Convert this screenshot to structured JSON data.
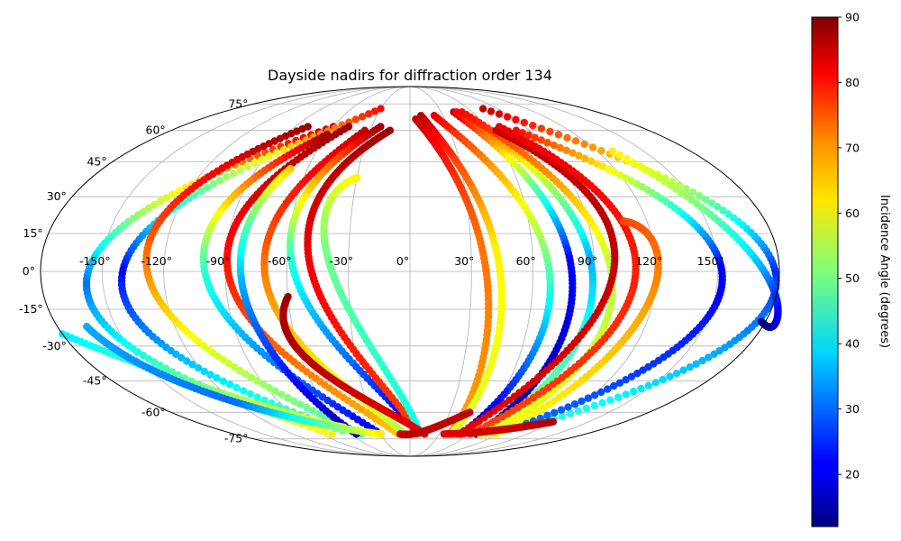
{
  "chart_data": {
    "type": "scatter",
    "title": "Dayside nadirs for diffraction order 134",
    "projection": "mollweide",
    "grid": true,
    "colormap": "jet",
    "lon_ticks": [
      -150,
      -120,
      -90,
      -60,
      -30,
      0,
      30,
      60,
      90,
      120,
      150
    ],
    "lon_tick_labels": [
      "-150°",
      "-120°",
      "-90°",
      "-60°",
      "-30°",
      "0°",
      "30°",
      "60°",
      "90°",
      "120°",
      "150°"
    ],
    "lat_ticks": [
      75,
      60,
      45,
      30,
      15,
      0,
      -15,
      -30,
      -45,
      -60,
      -75
    ],
    "lat_tick_labels": [
      "75°",
      "60°",
      "45°",
      "30°",
      "15°",
      "0°",
      "-15°",
      "-30°",
      "-45°",
      "-60°",
      "-75°"
    ],
    "colorbar": {
      "label": "Incidence Angle (degrees)",
      "range": [
        12,
        90
      ],
      "ticks": [
        20,
        30,
        40,
        50,
        60,
        70,
        80,
        90
      ]
    },
    "tracks": [
      {
        "lon_start": -60,
        "lat_start": 62,
        "lon_apex": -158,
        "lat_apex": -5,
        "lon_end": -80,
        "lat_end": -72,
        "inc_start": 85,
        "inc_apex": 30,
        "inc_end": 62
      },
      {
        "lon_start": -30,
        "lat_start": 72,
        "lon_apex": -140,
        "lat_apex": 0,
        "lon_end": -65,
        "lat_end": -70,
        "inc_start": 80,
        "inc_apex": 22,
        "inc_end": 50
      },
      {
        "lon_start": -80,
        "lat_start": 62,
        "lon_apex": -128,
        "lat_apex": 0,
        "lon_end": -50,
        "lat_end": -72,
        "inc_start": 88,
        "inc_apex": 70,
        "inc_end": 45
      },
      {
        "lon_start": -60,
        "lat_start": 58,
        "lon_apex": -100,
        "lat_apex": 0,
        "lon_end": -30,
        "lat_end": -72,
        "inc_start": 88,
        "inc_apex": 45,
        "inc_end": 20
      },
      {
        "lon_start": -48,
        "lat_start": 62,
        "lon_apex": -88,
        "lat_apex": -3,
        "lon_end": -12,
        "lat_end": -72,
        "inc_start": 88,
        "inc_apex": 78,
        "inc_end": 65
      },
      {
        "lon_start": -70,
        "lat_start": 42,
        "lon_apex": -82,
        "lat_apex": -5,
        "lon_end": -55,
        "lat_end": -72,
        "inc_start": 65,
        "inc_apex": 35,
        "inc_end": 15
      },
      {
        "lon_start": -34,
        "lat_start": 60,
        "lon_apex": -70,
        "lat_apex": -5,
        "lon_end": -5,
        "lat_end": -72,
        "inc_start": 85,
        "inc_apex": 70,
        "inc_end": 55
      },
      {
        "lon_start": -23,
        "lat_start": 62,
        "lon_apex": -58,
        "lat_apex": 5,
        "lon_end": 8,
        "lat_end": -72,
        "inc_start": 88,
        "inc_apex": 45,
        "inc_end": 18
      },
      {
        "lon_start": -15,
        "lat_start": 60,
        "lon_apex": -50,
        "lat_apex": 8,
        "lon_end": 8,
        "lat_end": -72,
        "inc_start": 88,
        "inc_apex": 82,
        "inc_end": 75
      },
      {
        "lon_start": -30,
        "lat_start": 38,
        "lon_apex": -40,
        "lat_apex": 5,
        "lon_end": 10,
        "lat_end": -72,
        "inc_start": 62,
        "inc_apex": 50,
        "inc_end": 42
      },
      {
        "lon_start": -60,
        "lat_start": -10,
        "lon_apex": -52,
        "lat_apex": -40,
        "lon_end": 15,
        "lat_end": -72,
        "inc_start": 88,
        "inc_apex": 85,
        "inc_end": 82
      },
      {
        "lon_start": 5,
        "lat_start": 66,
        "lon_apex": 34,
        "lat_apex": 15,
        "lon_end": 40,
        "lat_end": -72,
        "inc_start": 85,
        "inc_apex": 72,
        "inc_end": 68
      },
      {
        "lon_start": 10,
        "lat_start": 68,
        "lon_apex": 42,
        "lat_apex": 10,
        "lon_end": 42,
        "lat_end": -72,
        "inc_start": 86,
        "inc_apex": 62,
        "inc_end": 58
      },
      {
        "lon_start": 22,
        "lat_start": 68,
        "lon_apex": 67,
        "lat_apex": 5,
        "lon_end": 52,
        "lat_end": -72,
        "inc_start": 82,
        "inc_apex": 50,
        "inc_end": 15
      },
      {
        "lon_start": 42,
        "lat_start": 70,
        "lon_apex": 78,
        "lat_apex": 5,
        "lon_end": 68,
        "lat_end": -72,
        "inc_start": 85,
        "inc_apex": 22,
        "inc_end": 14
      },
      {
        "lon_start": 45,
        "lat_start": 70,
        "lon_apex": 88,
        "lat_apex": 5,
        "lon_end": 72,
        "lat_end": -72,
        "inc_start": 80,
        "inc_apex": 35,
        "inc_end": 55
      },
      {
        "lon_start": 50,
        "lat_start": 70,
        "lon_apex": 98,
        "lat_apex": 0,
        "lon_end": 78,
        "lat_end": -72,
        "inc_start": 80,
        "inc_apex": 55,
        "inc_end": 60
      },
      {
        "lon_start": 65,
        "lat_start": 60,
        "lon_apex": 100,
        "lat_apex": 5,
        "lon_end": 50,
        "lat_end": -72,
        "inc_start": 85,
        "inc_apex": 85,
        "inc_end": 82
      },
      {
        "lon_start": 70,
        "lat_start": 62,
        "lon_apex": 110,
        "lat_apex": 0,
        "lon_end": 62,
        "lat_end": -72,
        "inc_start": 82,
        "inc_apex": 78,
        "inc_end": 75
      },
      {
        "lon_start": 108,
        "lat_start": 20,
        "lon_apex": 120,
        "lat_apex": -5,
        "lon_end": 88,
        "lat_end": -72,
        "inc_start": 75,
        "inc_apex": 70,
        "inc_end": 60
      },
      {
        "lon_start": 75,
        "lat_start": 72,
        "lon_apex": 178,
        "lat_apex": 0,
        "lon_end": 110,
        "lat_end": -66,
        "inc_start": 85,
        "inc_apex": 25,
        "inc_end": 45
      },
      {
        "lon_start": 80,
        "lat_start": 60,
        "lon_apex": 152,
        "lat_apex": 0,
        "lon_end": 100,
        "lat_end": -66,
        "inc_start": 80,
        "inc_apex": 20,
        "inc_end": 30
      },
      {
        "lon_start": 130,
        "lat_start": 50,
        "lon_apex": 180,
        "lat_apex": -10,
        "lon_end": 178,
        "lat_end": -20,
        "inc_start": 62,
        "inc_apex": 25,
        "inc_end": 12
      },
      {
        "lon_start": -180,
        "lat_start": -25,
        "lon_apex": -110,
        "lat_apex": -55,
        "lon_end": -60,
        "lat_end": -68,
        "inc_start": 40,
        "inc_apex": 55,
        "inc_end": 62
      },
      {
        "lon_start": -165,
        "lat_start": -22,
        "lon_apex": -120,
        "lat_apex": -55,
        "lon_end": -30,
        "lat_end": -72,
        "inc_start": 35,
        "inc_apex": 30,
        "inc_end": 62
      },
      {
        "lon_start": -10,
        "lat_start": -72,
        "lon_apex": 15,
        "lat_apex": -70,
        "lon_end": 45,
        "lat_end": -60,
        "inc_start": 85,
        "inc_apex": 85,
        "inc_end": 85
      },
      {
        "lon_start": 35,
        "lat_start": -72,
        "lon_apex": 80,
        "lat_apex": -70,
        "lon_end": 120,
        "lat_end": -65,
        "inc_start": 82,
        "inc_apex": 84,
        "inc_end": 86
      }
    ]
  }
}
